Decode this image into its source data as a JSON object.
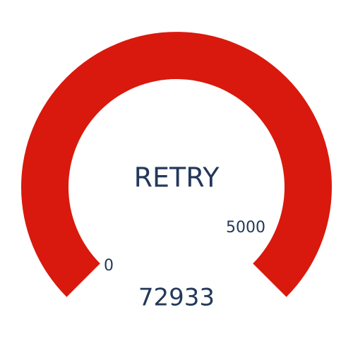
{
  "gauge": {
    "label": "RETRY",
    "value": "72933",
    "min_label": "0",
    "max_label": "5000",
    "arc_color": "#d9190d",
    "text_color": "#23385a",
    "fill_fraction": 1.0
  }
}
